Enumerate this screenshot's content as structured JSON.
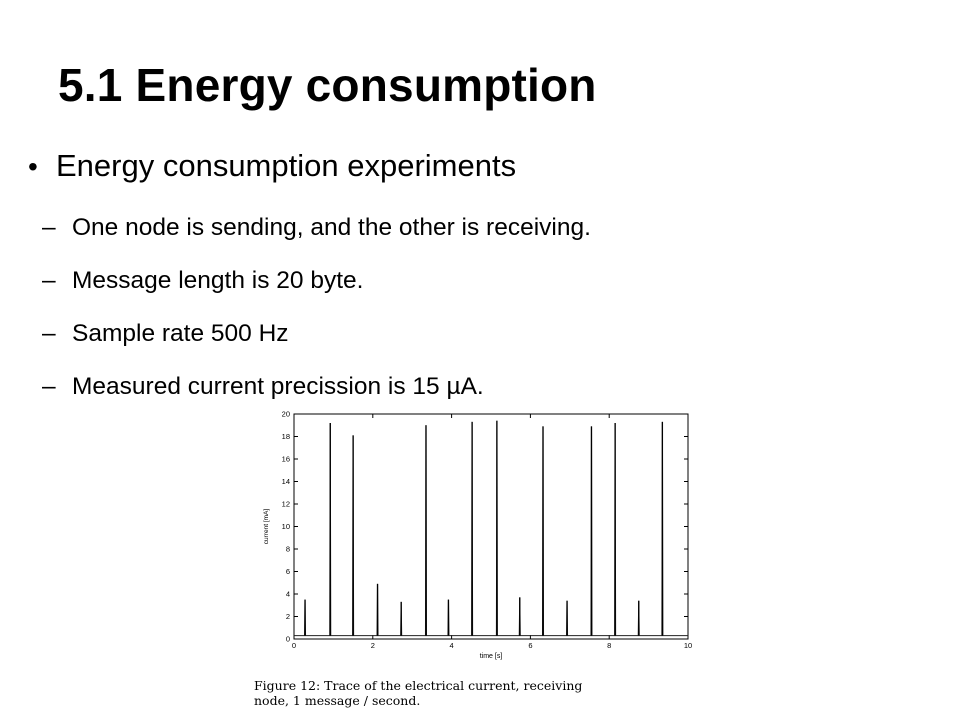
{
  "slide": {
    "title": "5.1 Energy consumption",
    "bullet": "Energy consumption experiments",
    "sub_items": [
      "One node is sending, and the other is receiving.",
      "Message length is 20 byte.",
      "Sample rate 500 Hz",
      "Measured current precission is 15 µA."
    ]
  },
  "figure": {
    "caption_line1": "Figure 12: Trace of the electrical current, receiving",
    "caption_line2": "node, 1 message / second."
  },
  "chart_data": {
    "type": "line",
    "title": "",
    "xlabel": "time [s]",
    "ylabel": "current [mA]",
    "xlim": [
      0,
      10
    ],
    "ylim": [
      0,
      20
    ],
    "x_ticks": [
      0,
      2,
      4,
      6,
      8,
      10
    ],
    "y_ticks": [
      0,
      2,
      4,
      6,
      8,
      10,
      12,
      14,
      16,
      18,
      20
    ],
    "grid": false,
    "series": [
      {
        "peaks": [
          {
            "x": 0.28,
            "y": 3.5
          },
          {
            "x": 0.92,
            "y": 19.2
          },
          {
            "x": 1.5,
            "y": 18.1
          },
          {
            "x": 2.12,
            "y": 4.9
          },
          {
            "x": 2.72,
            "y": 3.3
          },
          {
            "x": 3.35,
            "y": 19.0
          },
          {
            "x": 3.92,
            "y": 3.5
          },
          {
            "x": 4.52,
            "y": 19.3
          },
          {
            "x": 5.15,
            "y": 19.4
          },
          {
            "x": 5.73,
            "y": 3.7
          },
          {
            "x": 6.32,
            "y": 18.9
          },
          {
            "x": 6.93,
            "y": 3.4
          },
          {
            "x": 7.55,
            "y": 18.9
          },
          {
            "x": 8.15,
            "y": 19.2
          },
          {
            "x": 8.75,
            "y": 3.4
          },
          {
            "x": 9.35,
            "y": 19.3
          }
        ],
        "baseline": 0.3
      }
    ]
  }
}
